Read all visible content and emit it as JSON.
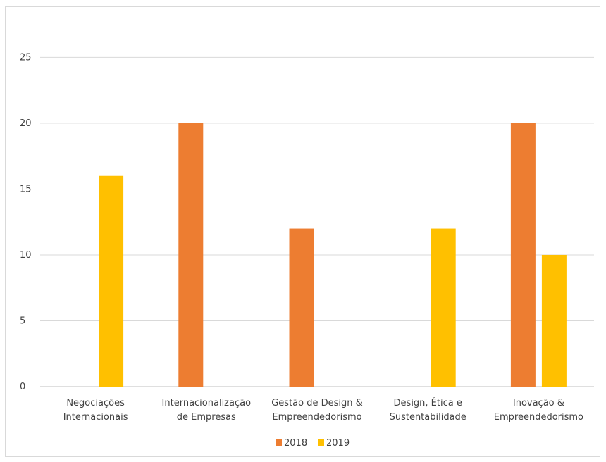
{
  "chart_data": {
    "type": "bar",
    "title": "",
    "xlabel": "",
    "ylabel": "",
    "categories": [
      [
        "Negociações",
        "Internacionais"
      ],
      [
        "Internacionalização",
        "de Empresas"
      ],
      [
        "Gestão de Design &",
        "Empreendedorismo"
      ],
      [
        "Design, Ética e",
        "Sustentabilidade"
      ],
      [
        "Inovação &",
        "Empreendedorismo"
      ]
    ],
    "series": [
      {
        "name": "2018",
        "color": "#ED7D31",
        "values": [
          0,
          20,
          12,
          0,
          20
        ]
      },
      {
        "name": "2019",
        "color": "#FFC000",
        "values": [
          16,
          0,
          0,
          12,
          10
        ]
      }
    ],
    "ylim": [
      0,
      27
    ],
    "yticks": [
      0,
      5,
      10,
      15,
      20,
      25
    ],
    "grid": true,
    "legend": "bottom-center"
  }
}
